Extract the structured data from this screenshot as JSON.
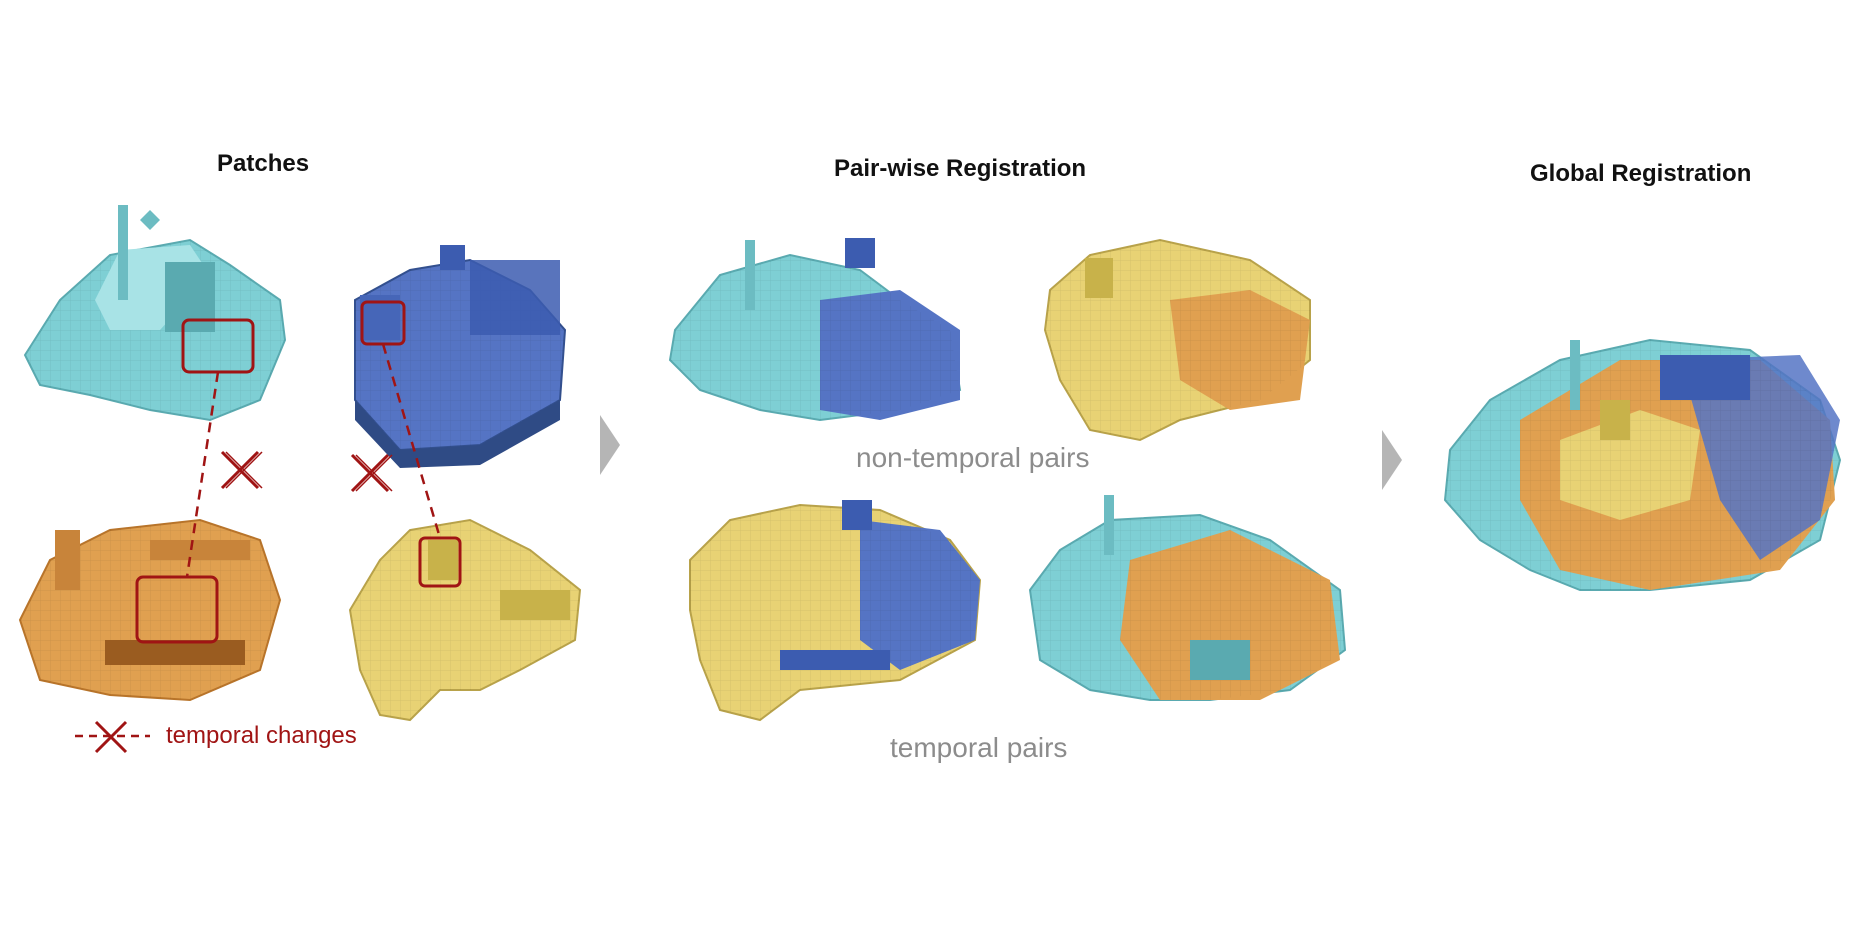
{
  "titles": {
    "patches": "Patches",
    "pairwise": "Pair-wise Registration",
    "global": "Global Registration"
  },
  "captions": {
    "non_temporal": "non-temporal pairs",
    "temporal": "temporal pairs"
  },
  "legend": {
    "temporal_changes": "temporal changes"
  },
  "colors": {
    "cyan_patch": "#7ecfd4",
    "blue_patch": "#5574c4",
    "orange_patch": "#e0a050",
    "yellow_patch": "#e8d274",
    "highlight": "#a01414",
    "arrow": "#b5b5b5"
  }
}
